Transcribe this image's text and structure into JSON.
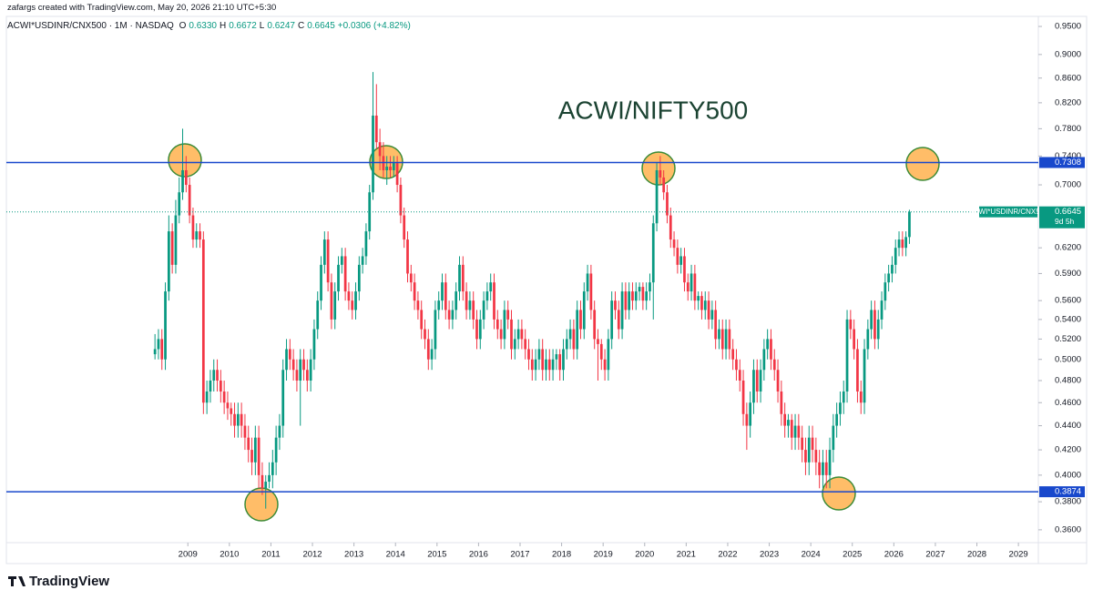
{
  "chart_data": {
    "type": "candlestick",
    "attribution": "zafargs created with TradingView.com, May 20, 2026 21:10 UTC+5:30",
    "symbol": "ACWI*USDINR/CNX500 · 1M · NASDAQ",
    "ohlc_legend": [
      {
        "key": "O",
        "value": "0.6330"
      },
      {
        "key": "H",
        "value": "0.6672"
      },
      {
        "key": "L",
        "value": "0.6247"
      },
      {
        "key": "C",
        "value": "0.6645"
      }
    ],
    "change": "+0.0306 (+4.82%)",
    "annotation": "ACWI/NIFTY500",
    "logo": "TradingView",
    "up_color": "#089981",
    "down_color": "#f23645",
    "log_scale": true,
    "ylim": [
      0.3512,
      0.9686
    ],
    "yticks": [
      {
        "value": 0.95,
        "label": "0.9500"
      },
      {
        "value": 0.9,
        "label": "0.9000"
      },
      {
        "value": 0.86,
        "label": "0.8600"
      },
      {
        "value": 0.82,
        "label": "0.8200"
      },
      {
        "value": 0.78,
        "label": "0.7800"
      },
      {
        "value": 0.74,
        "label": "0.7400"
      },
      {
        "value": 0.7,
        "label": "0.7000"
      },
      {
        "value": 0.62,
        "label": "0.6200"
      },
      {
        "value": 0.59,
        "label": "0.5900"
      },
      {
        "value": 0.56,
        "label": "0.5600"
      },
      {
        "value": 0.54,
        "label": "0.5400"
      },
      {
        "value": 0.52,
        "label": "0.5200"
      },
      {
        "value": 0.5,
        "label": "0.5000"
      },
      {
        "value": 0.48,
        "label": "0.4800"
      },
      {
        "value": 0.46,
        "label": "0.4600"
      },
      {
        "value": 0.44,
        "label": "0.4400"
      },
      {
        "value": 0.42,
        "label": "0.4200"
      },
      {
        "value": 0.4,
        "label": "0.4000"
      },
      {
        "value": 0.38,
        "label": "0.3800"
      },
      {
        "value": 0.36,
        "label": "0.3600"
      }
    ],
    "xlim": [
      2004.63,
      2029.48
    ],
    "xticks": [
      2009,
      2010,
      2011,
      2012,
      2013,
      2014,
      2015,
      2016,
      2017,
      2018,
      2019,
      2020,
      2021,
      2022,
      2023,
      2024,
      2025,
      2026,
      2027,
      2028,
      2029
    ],
    "hlines": [
      {
        "value": 0.7308,
        "label": "0.7308",
        "color": "#1848cc"
      },
      {
        "value": 0.3874,
        "label": "0.3874",
        "color": "#1848cc"
      }
    ],
    "last_price": {
      "name": "ACWI*USDINR/CNX500",
      "value": 0.6645,
      "label": "0.6645",
      "countdown": "9d 5h"
    },
    "candles": [
      [
        0.505,
        0.525,
        0.5,
        0.51
      ],
      [
        0.51,
        0.53,
        0.5,
        0.52
      ],
      [
        0.52,
        0.53,
        0.49,
        0.5
      ],
      [
        0.5,
        0.58,
        0.49,
        0.57
      ],
      [
        0.57,
        0.66,
        0.56,
        0.64
      ],
      [
        0.64,
        0.65,
        0.59,
        0.6
      ],
      [
        0.6,
        0.68,
        0.59,
        0.66
      ],
      [
        0.66,
        0.71,
        0.65,
        0.69
      ],
      [
        0.69,
        0.78,
        0.68,
        0.72
      ],
      [
        0.72,
        0.74,
        0.69,
        0.7
      ],
      [
        0.7,
        0.71,
        0.65,
        0.66
      ],
      [
        0.66,
        0.67,
        0.62,
        0.63
      ],
      [
        0.63,
        0.65,
        0.62,
        0.64
      ],
      [
        0.64,
        0.65,
        0.62,
        0.63
      ],
      [
        0.63,
        0.64,
        0.45,
        0.46
      ],
      [
        0.46,
        0.48,
        0.45,
        0.47
      ],
      [
        0.47,
        0.49,
        0.46,
        0.48
      ],
      [
        0.48,
        0.5,
        0.47,
        0.49
      ],
      [
        0.49,
        0.5,
        0.47,
        0.48
      ],
      [
        0.48,
        0.49,
        0.46,
        0.47
      ],
      [
        0.47,
        0.48,
        0.45,
        0.46
      ],
      [
        0.46,
        0.47,
        0.445,
        0.455
      ],
      [
        0.455,
        0.46,
        0.44,
        0.45
      ],
      [
        0.45,
        0.46,
        0.43,
        0.44
      ],
      [
        0.44,
        0.46,
        0.43,
        0.45
      ],
      [
        0.45,
        0.46,
        0.43,
        0.44
      ],
      [
        0.44,
        0.45,
        0.42,
        0.43
      ],
      [
        0.43,
        0.44,
        0.41,
        0.42
      ],
      [
        0.42,
        0.43,
        0.4,
        0.41
      ],
      [
        0.41,
        0.44,
        0.4,
        0.43
      ],
      [
        0.43,
        0.44,
        0.39,
        0.4
      ],
      [
        0.4,
        0.41,
        0.385,
        0.39
      ],
      [
        0.39,
        0.4,
        0.375,
        0.395
      ],
      [
        0.395,
        0.41,
        0.39,
        0.4
      ],
      [
        0.4,
        0.42,
        0.39,
        0.41
      ],
      [
        0.41,
        0.44,
        0.4,
        0.43
      ],
      [
        0.43,
        0.45,
        0.42,
        0.44
      ],
      [
        0.44,
        0.5,
        0.43,
        0.49
      ],
      [
        0.49,
        0.52,
        0.48,
        0.51
      ],
      [
        0.51,
        0.52,
        0.49,
        0.5
      ],
      [
        0.5,
        0.51,
        0.48,
        0.49
      ],
      [
        0.49,
        0.5,
        0.47,
        0.48
      ],
      [
        0.48,
        0.51,
        0.44,
        0.5
      ],
      [
        0.5,
        0.51,
        0.48,
        0.49
      ],
      [
        0.49,
        0.5,
        0.47,
        0.48
      ],
      [
        0.48,
        0.51,
        0.47,
        0.5
      ],
      [
        0.5,
        0.54,
        0.49,
        0.53
      ],
      [
        0.53,
        0.57,
        0.52,
        0.56
      ],
      [
        0.56,
        0.61,
        0.55,
        0.6
      ],
      [
        0.6,
        0.64,
        0.59,
        0.63
      ],
      [
        0.63,
        0.64,
        0.57,
        0.58
      ],
      [
        0.58,
        0.59,
        0.53,
        0.54
      ],
      [
        0.54,
        0.58,
        0.53,
        0.57
      ],
      [
        0.57,
        0.61,
        0.56,
        0.6
      ],
      [
        0.6,
        0.62,
        0.59,
        0.61
      ],
      [
        0.61,
        0.62,
        0.56,
        0.57
      ],
      [
        0.57,
        0.58,
        0.55,
        0.56
      ],
      [
        0.56,
        0.57,
        0.54,
        0.55
      ],
      [
        0.55,
        0.58,
        0.54,
        0.57
      ],
      [
        0.57,
        0.61,
        0.56,
        0.6
      ],
      [
        0.6,
        0.62,
        0.59,
        0.61
      ],
      [
        0.61,
        0.65,
        0.6,
        0.64
      ],
      [
        0.64,
        0.7,
        0.63,
        0.69
      ],
      [
        0.69,
        0.87,
        0.68,
        0.8
      ],
      [
        0.8,
        0.85,
        0.75,
        0.76
      ],
      [
        0.76,
        0.78,
        0.72,
        0.74
      ],
      [
        0.74,
        0.76,
        0.71,
        0.72
      ],
      [
        0.72,
        0.74,
        0.7,
        0.725
      ],
      [
        0.725,
        0.74,
        0.71,
        0.72
      ],
      [
        0.72,
        0.74,
        0.71,
        0.73
      ],
      [
        0.73,
        0.74,
        0.69,
        0.7
      ],
      [
        0.7,
        0.71,
        0.65,
        0.66
      ],
      [
        0.66,
        0.67,
        0.62,
        0.63
      ],
      [
        0.63,
        0.64,
        0.58,
        0.59
      ],
      [
        0.59,
        0.6,
        0.57,
        0.58
      ],
      [
        0.58,
        0.59,
        0.55,
        0.56
      ],
      [
        0.56,
        0.57,
        0.54,
        0.55
      ],
      [
        0.55,
        0.56,
        0.52,
        0.53
      ],
      [
        0.53,
        0.54,
        0.51,
        0.52
      ],
      [
        0.52,
        0.53,
        0.49,
        0.5
      ],
      [
        0.5,
        0.52,
        0.49,
        0.51
      ],
      [
        0.51,
        0.56,
        0.5,
        0.55
      ],
      [
        0.55,
        0.57,
        0.54,
        0.56
      ],
      [
        0.56,
        0.59,
        0.55,
        0.58
      ],
      [
        0.58,
        0.59,
        0.54,
        0.55
      ],
      [
        0.55,
        0.56,
        0.53,
        0.54
      ],
      [
        0.54,
        0.56,
        0.53,
        0.55
      ],
      [
        0.55,
        0.58,
        0.54,
        0.57
      ],
      [
        0.57,
        0.61,
        0.56,
        0.6
      ],
      [
        0.6,
        0.61,
        0.56,
        0.57
      ],
      [
        0.57,
        0.58,
        0.54,
        0.55
      ],
      [
        0.55,
        0.57,
        0.54,
        0.56
      ],
      [
        0.56,
        0.57,
        0.53,
        0.54
      ],
      [
        0.54,
        0.55,
        0.51,
        0.52
      ],
      [
        0.52,
        0.55,
        0.51,
        0.54
      ],
      [
        0.54,
        0.57,
        0.53,
        0.56
      ],
      [
        0.56,
        0.58,
        0.55,
        0.57
      ],
      [
        0.57,
        0.59,
        0.56,
        0.58
      ],
      [
        0.58,
        0.59,
        0.53,
        0.54
      ],
      [
        0.54,
        0.55,
        0.52,
        0.53
      ],
      [
        0.53,
        0.54,
        0.51,
        0.52
      ],
      [
        0.52,
        0.56,
        0.51,
        0.55
      ],
      [
        0.55,
        0.56,
        0.53,
        0.54
      ],
      [
        0.54,
        0.55,
        0.5,
        0.51
      ],
      [
        0.51,
        0.53,
        0.5,
        0.52
      ],
      [
        0.52,
        0.54,
        0.51,
        0.53
      ],
      [
        0.53,
        0.54,
        0.51,
        0.52
      ],
      [
        0.52,
        0.53,
        0.5,
        0.51
      ],
      [
        0.51,
        0.52,
        0.49,
        0.5
      ],
      [
        0.5,
        0.51,
        0.48,
        0.49
      ],
      [
        0.49,
        0.51,
        0.48,
        0.5
      ],
      [
        0.5,
        0.52,
        0.49,
        0.51
      ],
      [
        0.51,
        0.52,
        0.48,
        0.49
      ],
      [
        0.49,
        0.51,
        0.48,
        0.5
      ],
      [
        0.5,
        0.51,
        0.48,
        0.49
      ],
      [
        0.49,
        0.51,
        0.48,
        0.5
      ],
      [
        0.5,
        0.51,
        0.49,
        0.505
      ],
      [
        0.505,
        0.51,
        0.48,
        0.49
      ],
      [
        0.49,
        0.52,
        0.48,
        0.51
      ],
      [
        0.51,
        0.53,
        0.5,
        0.52
      ],
      [
        0.52,
        0.54,
        0.51,
        0.53
      ],
      [
        0.53,
        0.54,
        0.5,
        0.51
      ],
      [
        0.51,
        0.56,
        0.5,
        0.55
      ],
      [
        0.55,
        0.56,
        0.52,
        0.53
      ],
      [
        0.53,
        0.58,
        0.52,
        0.57
      ],
      [
        0.57,
        0.6,
        0.56,
        0.59
      ],
      [
        0.59,
        0.6,
        0.54,
        0.55
      ],
      [
        0.55,
        0.56,
        0.51,
        0.52
      ],
      [
        0.52,
        0.53,
        0.48,
        0.515
      ],
      [
        0.515,
        0.52,
        0.49,
        0.5
      ],
      [
        0.5,
        0.51,
        0.48,
        0.49
      ],
      [
        0.49,
        0.53,
        0.48,
        0.52
      ],
      [
        0.52,
        0.57,
        0.51,
        0.56
      ],
      [
        0.56,
        0.57,
        0.54,
        0.55
      ],
      [
        0.55,
        0.56,
        0.52,
        0.53
      ],
      [
        0.53,
        0.58,
        0.52,
        0.57
      ],
      [
        0.57,
        0.58,
        0.54,
        0.55
      ],
      [
        0.55,
        0.58,
        0.54,
        0.57
      ],
      [
        0.57,
        0.58,
        0.55,
        0.56
      ],
      [
        0.56,
        0.58,
        0.55,
        0.57
      ],
      [
        0.57,
        0.58,
        0.56,
        0.575
      ],
      [
        0.575,
        0.58,
        0.55,
        0.56
      ],
      [
        0.56,
        0.58,
        0.55,
        0.57
      ],
      [
        0.57,
        0.59,
        0.56,
        0.58
      ],
      [
        0.58,
        0.66,
        0.54,
        0.65
      ],
      [
        0.65,
        0.73,
        0.64,
        0.72
      ],
      [
        0.72,
        0.74,
        0.7,
        0.71
      ],
      [
        0.71,
        0.72,
        0.68,
        0.69
      ],
      [
        0.69,
        0.7,
        0.65,
        0.66
      ],
      [
        0.66,
        0.67,
        0.62,
        0.63
      ],
      [
        0.63,
        0.64,
        0.61,
        0.62
      ],
      [
        0.62,
        0.63,
        0.59,
        0.6
      ],
      [
        0.6,
        0.62,
        0.59,
        0.61
      ],
      [
        0.61,
        0.62,
        0.57,
        0.58
      ],
      [
        0.58,
        0.59,
        0.56,
        0.57
      ],
      [
        0.57,
        0.6,
        0.56,
        0.59
      ],
      [
        0.59,
        0.6,
        0.55,
        0.56
      ],
      [
        0.56,
        0.57,
        0.55,
        0.565
      ],
      [
        0.565,
        0.57,
        0.54,
        0.55
      ],
      [
        0.55,
        0.57,
        0.54,
        0.56
      ],
      [
        0.56,
        0.57,
        0.53,
        0.54
      ],
      [
        0.54,
        0.56,
        0.53,
        0.55
      ],
      [
        0.55,
        0.56,
        0.51,
        0.52
      ],
      [
        0.52,
        0.54,
        0.51,
        0.53
      ],
      [
        0.53,
        0.54,
        0.5,
        0.51
      ],
      [
        0.51,
        0.54,
        0.5,
        0.53
      ],
      [
        0.53,
        0.54,
        0.5,
        0.51
      ],
      [
        0.51,
        0.52,
        0.49,
        0.5
      ],
      [
        0.5,
        0.51,
        0.48,
        0.49
      ],
      [
        0.49,
        0.5,
        0.47,
        0.48
      ],
      [
        0.48,
        0.49,
        0.44,
        0.45
      ],
      [
        0.45,
        0.46,
        0.42,
        0.44
      ],
      [
        0.44,
        0.47,
        0.43,
        0.46
      ],
      [
        0.46,
        0.5,
        0.45,
        0.49
      ],
      [
        0.49,
        0.5,
        0.46,
        0.47
      ],
      [
        0.47,
        0.5,
        0.46,
        0.49
      ],
      [
        0.49,
        0.52,
        0.48,
        0.51
      ],
      [
        0.51,
        0.53,
        0.5,
        0.52
      ],
      [
        0.52,
        0.53,
        0.49,
        0.5
      ],
      [
        0.5,
        0.51,
        0.48,
        0.49
      ],
      [
        0.49,
        0.5,
        0.46,
        0.47
      ],
      [
        0.47,
        0.48,
        0.44,
        0.45
      ],
      [
        0.45,
        0.46,
        0.43,
        0.44
      ],
      [
        0.44,
        0.45,
        0.43,
        0.445
      ],
      [
        0.445,
        0.45,
        0.42,
        0.43
      ],
      [
        0.43,
        0.45,
        0.42,
        0.44
      ],
      [
        0.44,
        0.45,
        0.42,
        0.43
      ],
      [
        0.43,
        0.44,
        0.41,
        0.42
      ],
      [
        0.42,
        0.43,
        0.4,
        0.41
      ],
      [
        0.41,
        0.44,
        0.4,
        0.43
      ],
      [
        0.43,
        0.44,
        0.41,
        0.42
      ],
      [
        0.42,
        0.43,
        0.4,
        0.41
      ],
      [
        0.41,
        0.42,
        0.39,
        0.4
      ],
      [
        0.4,
        0.42,
        0.39,
        0.41
      ],
      [
        0.41,
        0.42,
        0.39,
        0.4
      ],
      [
        0.4,
        0.43,
        0.39,
        0.42
      ],
      [
        0.42,
        0.45,
        0.41,
        0.44
      ],
      [
        0.44,
        0.46,
        0.43,
        0.45
      ],
      [
        0.45,
        0.47,
        0.44,
        0.46
      ],
      [
        0.46,
        0.48,
        0.45,
        0.47
      ],
      [
        0.47,
        0.55,
        0.46,
        0.54
      ],
      [
        0.54,
        0.55,
        0.52,
        0.53
      ],
      [
        0.53,
        0.54,
        0.5,
        0.51
      ],
      [
        0.51,
        0.52,
        0.46,
        0.47
      ],
      [
        0.47,
        0.48,
        0.45,
        0.46
      ],
      [
        0.46,
        0.52,
        0.45,
        0.51
      ],
      [
        0.51,
        0.54,
        0.5,
        0.53
      ],
      [
        0.53,
        0.56,
        0.52,
        0.55
      ],
      [
        0.55,
        0.56,
        0.51,
        0.52
      ],
      [
        0.52,
        0.55,
        0.51,
        0.54
      ],
      [
        0.54,
        0.57,
        0.53,
        0.56
      ],
      [
        0.56,
        0.59,
        0.55,
        0.58
      ],
      [
        0.58,
        0.6,
        0.57,
        0.59
      ],
      [
        0.59,
        0.61,
        0.58,
        0.6
      ],
      [
        0.6,
        0.63,
        0.59,
        0.62
      ],
      [
        0.62,
        0.64,
        0.61,
        0.63
      ],
      [
        0.63,
        0.64,
        0.61,
        0.62
      ],
      [
        0.62,
        0.64,
        0.61,
        0.633
      ],
      [
        0.633,
        0.6672,
        0.6247,
        0.6645
      ]
    ]
  }
}
